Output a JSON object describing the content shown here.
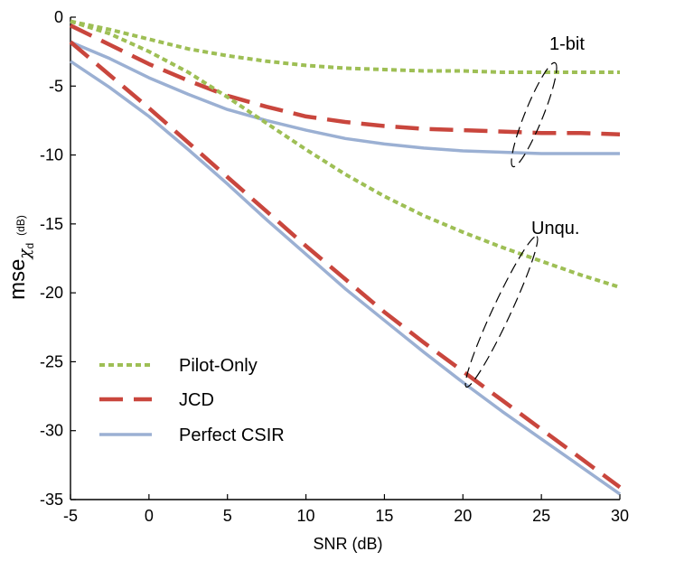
{
  "chart_data": {
    "type": "line",
    "xlabel": "SNR (dB)",
    "ylabel": {
      "main": "mse",
      "subscript": "χ",
      "subsubscript": "d",
      "unit": "(dB)"
    },
    "xlim": [
      -5,
      30
    ],
    "ylim": [
      -35,
      0
    ],
    "xticks": [
      -5,
      0,
      5,
      10,
      15,
      20,
      25,
      30
    ],
    "yticks": [
      0,
      -5,
      -10,
      -15,
      -20,
      -25,
      -30,
      -35
    ],
    "grid": false,
    "legend_position": "bottom-left",
    "series": [
      {
        "name": "Pilot-Only",
        "group": "1-bit",
        "color": "#9ebf55",
        "dash": "dotted",
        "x": [
          -5,
          -2.5,
          0,
          2.5,
          5,
          7.5,
          10,
          12.5,
          15,
          17.5,
          20,
          22.5,
          25,
          27.5,
          30
        ],
        "y": [
          -0.3,
          -0.9,
          -1.6,
          -2.3,
          -2.8,
          -3.2,
          -3.5,
          -3.7,
          -3.8,
          -3.9,
          -3.9,
          -4.0,
          -4.0,
          -4.0,
          -4.0
        ]
      },
      {
        "name": "JCD",
        "group": "1-bit",
        "color": "#c9463d",
        "dash": "dashed",
        "x": [
          -5,
          -2.5,
          0,
          2.5,
          5,
          7.5,
          10,
          12.5,
          15,
          17.5,
          20,
          22.5,
          25,
          27.5,
          30
        ],
        "y": [
          -0.6,
          -2.0,
          -3.4,
          -4.6,
          -5.7,
          -6.5,
          -7.2,
          -7.6,
          -7.9,
          -8.1,
          -8.2,
          -8.3,
          -8.4,
          -8.4,
          -8.5
        ]
      },
      {
        "name": "Perfect CSIR",
        "group": "1-bit",
        "color": "#9bb0d3",
        "dash": "solid",
        "x": [
          -5,
          -2.5,
          0,
          2.5,
          5,
          7.5,
          10,
          12.5,
          15,
          17.5,
          20,
          22.5,
          25,
          27.5,
          30
        ],
        "y": [
          -1.8,
          -3.0,
          -4.4,
          -5.6,
          -6.7,
          -7.5,
          -8.2,
          -8.8,
          -9.2,
          -9.5,
          -9.7,
          -9.8,
          -9.9,
          -9.9,
          -9.9
        ]
      },
      {
        "name": "Pilot-Only",
        "group": "Unqu.",
        "color": "#9ebf55",
        "dash": "dotted",
        "x": [
          -5,
          -2.5,
          0,
          2.5,
          5,
          7.5,
          10,
          12.5,
          15,
          17.5,
          20,
          22.5,
          25,
          27.5,
          30
        ],
        "y": [
          -0.3,
          -1.2,
          -2.5,
          -4.0,
          -5.8,
          -7.7,
          -9.6,
          -11.4,
          -13.0,
          -14.4,
          -15.6,
          -16.7,
          -17.7,
          -18.7,
          -19.6
        ]
      },
      {
        "name": "JCD",
        "group": "Unqu.",
        "color": "#c9463d",
        "dash": "dashed",
        "x": [
          -5,
          -2.5,
          0,
          2.5,
          5,
          7.5,
          10,
          12.5,
          15,
          17.5,
          20,
          22.5,
          25,
          27.5,
          30
        ],
        "y": [
          -1.8,
          -4.2,
          -6.6,
          -9.1,
          -11.6,
          -14.1,
          -16.6,
          -19.0,
          -21.4,
          -23.6,
          -25.7,
          -27.8,
          -29.9,
          -32.0,
          -34.1
        ]
      },
      {
        "name": "Perfect CSIR",
        "group": "Unqu.",
        "color": "#9bb0d3",
        "dash": "solid",
        "x": [
          -5,
          -2.5,
          0,
          2.5,
          5,
          7.5,
          10,
          12.5,
          15,
          17.5,
          20,
          22.5,
          25,
          27.5,
          30
        ],
        "y": [
          -3.2,
          -5.1,
          -7.2,
          -9.6,
          -12.1,
          -14.7,
          -17.2,
          -19.7,
          -22.0,
          -24.3,
          -26.5,
          -28.6,
          -30.6,
          -32.6,
          -34.6
        ]
      }
    ],
    "legend": [
      {
        "label": "Pilot-Only",
        "color": "#9ebf55",
        "dash": "dotted"
      },
      {
        "label": "JCD",
        "color": "#c9463d",
        "dash": "dashed"
      },
      {
        "label": "Perfect CSIR",
        "color": "#9bb0d3",
        "dash": "solid"
      }
    ],
    "annotations": [
      {
        "text": "1-bit"
      },
      {
        "text": "Unqu."
      }
    ]
  }
}
